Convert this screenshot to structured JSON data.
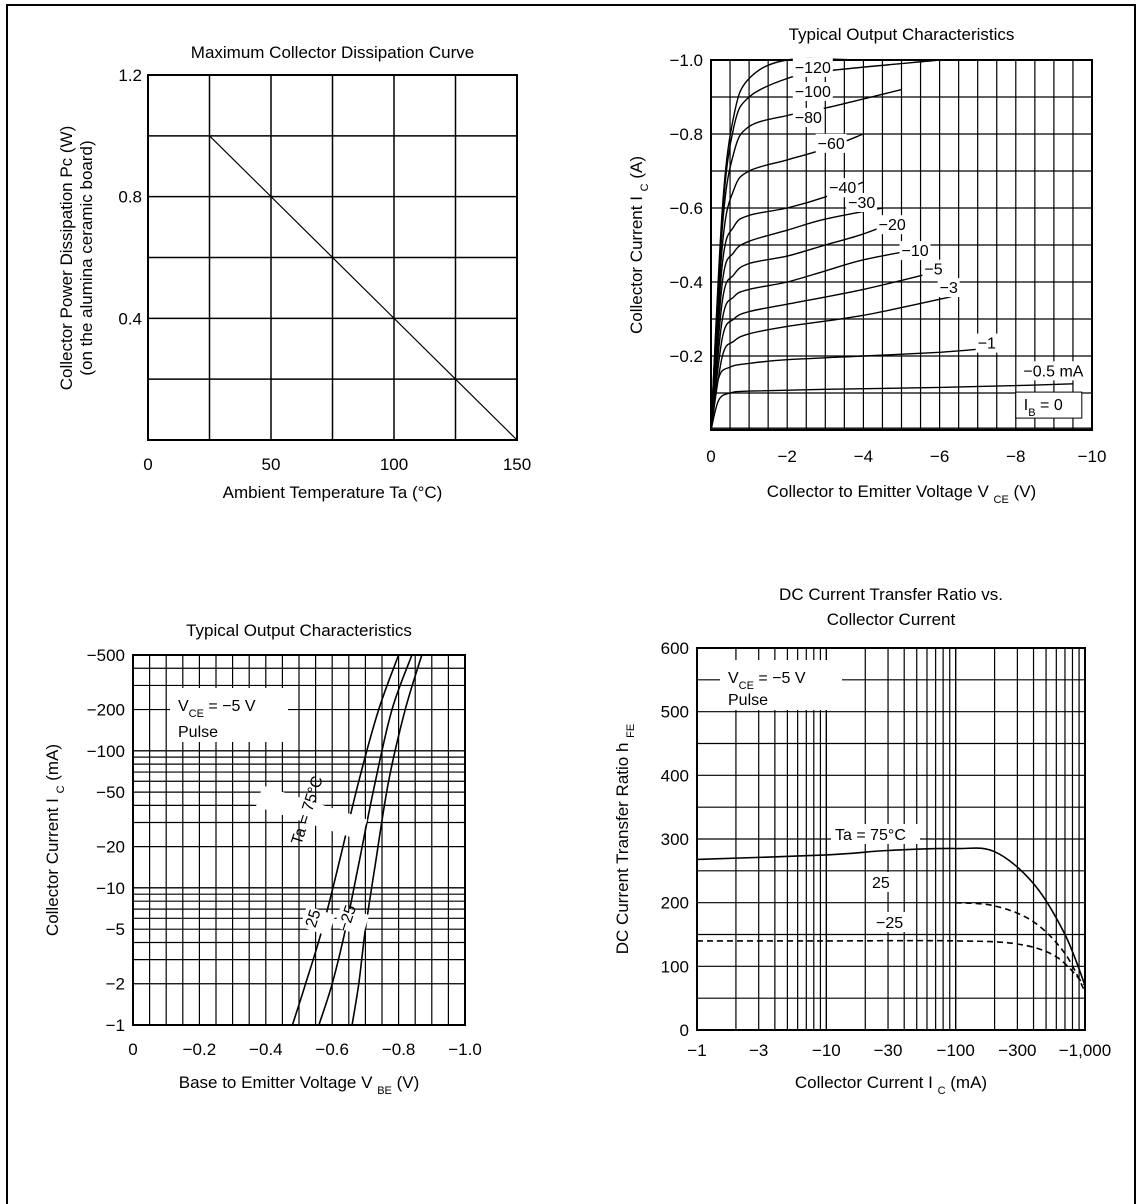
{
  "chart_data": [
    {
      "id": "c1",
      "type": "line",
      "title": "Maximum Collector Dissipation Curve",
      "xlabel": "Ambient Temperature Ta (°C)",
      "ylabel_line1": "Collector Power Dissipation Pc (W)",
      "ylabel_line2": "(on the alumina ceramic board)",
      "xlim": [
        0,
        150
      ],
      "ylim": [
        0,
        1.2
      ],
      "x_ticks": [
        "0",
        "50",
        "100",
        "150"
      ],
      "x_tick_values": [
        0,
        50,
        100,
        150
      ],
      "y_ticks": [
        "1.2",
        "0.8",
        "0.4"
      ],
      "y_tick_values": [
        1.2,
        0.8,
        0.4
      ],
      "grid": true,
      "series": [
        {
          "x": [
            25,
            150
          ],
          "y": [
            1.0,
            0
          ]
        }
      ]
    },
    {
      "id": "c2",
      "type": "line",
      "title": "Typical Output Characteristics",
      "xlabel": "Collector to Emitter Voltage V",
      "xlabel_sub": "CE",
      "xlabel_unit": "(V)",
      "ylabel": "Collector Current I",
      "ylabel_sub": "C",
      "ylabel_unit": "(A)",
      "xlim": [
        0,
        -10
      ],
      "ylim": [
        0,
        -1.0
      ],
      "x_ticks": [
        "0",
        "−2",
        "−4",
        "−6",
        "−8",
        "−10"
      ],
      "x_tick_values": [
        0,
        -2,
        -4,
        -6,
        -8,
        -10
      ],
      "y_ticks": [
        "−1.0",
        "−0.8",
        "−0.6",
        "−0.4",
        "−0.2"
      ],
      "y_tick_values": [
        -1.0,
        -0.8,
        -0.6,
        -0.4,
        -0.2
      ],
      "grid": true,
      "curve_labels": [
        "−120",
        "−100",
        "−80",
        "−60",
        "−40",
        "−30",
        "−20",
        "−10",
        "−5",
        "−3",
        "−1",
        "−0.5 mA"
      ],
      "ib_zero_label": "I",
      "ib_zero_sub": "B",
      "ib_zero_value": "= 0",
      "series": [
        {
          "name": "−120",
          "x": [
            0,
            -0.3,
            -0.6,
            -1,
            -2,
            -4,
            -6
          ],
          "y": [
            0,
            -0.6,
            -0.85,
            -0.95,
            -1.0,
            -1.0,
            -1.0
          ]
        },
        {
          "name": "−100",
          "x": [
            0,
            -0.3,
            -0.6,
            -1,
            -2,
            -3,
            -6
          ],
          "y": [
            0,
            -0.58,
            -0.82,
            -0.9,
            -0.95,
            -0.97,
            -1.0
          ]
        },
        {
          "name": "−80",
          "x": [
            0,
            -0.3,
            -0.6,
            -1,
            -2,
            -3,
            -5
          ],
          "y": [
            0,
            -0.55,
            -0.75,
            -0.82,
            -0.85,
            -0.87,
            -0.92
          ]
        },
        {
          "name": "−60",
          "x": [
            0,
            -0.3,
            -0.6,
            -1,
            -2,
            -3,
            -4
          ],
          "y": [
            0,
            -0.5,
            -0.65,
            -0.7,
            -0.73,
            -0.76,
            -0.8
          ]
        },
        {
          "name": "−40",
          "x": [
            0,
            -0.3,
            -0.6,
            -1,
            -2,
            -3,
            -4
          ],
          "y": [
            0,
            -0.45,
            -0.55,
            -0.58,
            -0.6,
            -0.63,
            -0.67
          ]
        },
        {
          "name": "−30",
          "x": [
            0,
            -0.3,
            -0.6,
            -1,
            -2,
            -3,
            -4.5
          ],
          "y": [
            0,
            -0.4,
            -0.48,
            -0.51,
            -0.54,
            -0.57,
            -0.6
          ]
        },
        {
          "name": "−20",
          "x": [
            0,
            -0.3,
            -0.6,
            -1,
            -2,
            -3,
            -4,
            -5
          ],
          "y": [
            0,
            -0.35,
            -0.42,
            -0.45,
            -0.47,
            -0.5,
            -0.53,
            -0.57
          ]
        },
        {
          "name": "−10",
          "x": [
            0,
            -0.3,
            -0.6,
            -1,
            -2,
            -3,
            -4,
            -5.5
          ],
          "y": [
            0,
            -0.3,
            -0.36,
            -0.38,
            -0.4,
            -0.43,
            -0.46,
            -0.49
          ]
        },
        {
          "name": "−5",
          "x": [
            0,
            -0.3,
            -0.6,
            -1,
            -2,
            -4,
            -6
          ],
          "y": [
            0,
            -0.25,
            -0.3,
            -0.32,
            -0.34,
            -0.38,
            -0.43
          ]
        },
        {
          "name": "−3",
          "x": [
            0,
            -0.3,
            -0.6,
            -1,
            -2,
            -4,
            -6.3
          ],
          "y": [
            0,
            -0.2,
            -0.24,
            -0.26,
            -0.28,
            -0.31,
            -0.36
          ]
        },
        {
          "name": "−1",
          "x": [
            0,
            -0.2,
            -0.5,
            -1,
            -2,
            -4,
            -6,
            -7.2
          ],
          "y": [
            0,
            -0.14,
            -0.17,
            -0.18,
            -0.19,
            -0.2,
            -0.21,
            -0.22
          ]
        },
        {
          "name": "−0.5 mA",
          "x": [
            0,
            -0.2,
            -0.5,
            -1,
            -3,
            -6,
            -8,
            -9.5
          ],
          "y": [
            0,
            -0.08,
            -0.1,
            -0.105,
            -0.11,
            -0.115,
            -0.12,
            -0.125
          ]
        }
      ]
    },
    {
      "id": "c3",
      "type": "line",
      "title": "Typical Output Characteristics",
      "xlabel": "Base to Emitter Voltage V",
      "xlabel_sub": "BE",
      "xlabel_unit": "(V)",
      "ylabel": "Collector Current I",
      "ylabel_sub": "C",
      "ylabel_unit": "(mA)",
      "xlim": [
        0,
        -1.0
      ],
      "ylim": [
        -1,
        -500
      ],
      "y_scale": "log",
      "x_ticks": [
        "0",
        "−0.2",
        "−0.4",
        "−0.6",
        "−0.8",
        "−1.0"
      ],
      "x_tick_values": [
        0,
        -0.2,
        -0.4,
        -0.6,
        -0.8,
        -1.0
      ],
      "y_ticks": [
        "−500",
        "−200",
        "−100",
        "−50",
        "−20",
        "−10",
        "−5",
        "−2",
        "−1"
      ],
      "y_tick_values": [
        -500,
        -200,
        -100,
        -50,
        -20,
        -10,
        -5,
        -2,
        -1
      ],
      "grid": true,
      "legend_line1": "V",
      "legend_sub": "CE",
      "legend_value": "= −5 V",
      "legend_line2": "Pulse",
      "series": [
        {
          "name": "Ta = 75°C",
          "x": [
            -0.48,
            -0.52,
            -0.57,
            -0.62,
            -0.68,
            -0.74,
            -0.8
          ],
          "y": [
            -1,
            -2,
            -5,
            -15,
            -60,
            -200,
            -500
          ]
        },
        {
          "name": "25",
          "x": [
            -0.56,
            -0.6,
            -0.64,
            -0.68,
            -0.73,
            -0.78,
            -0.84
          ],
          "y": [
            -1,
            -2,
            -5,
            -15,
            -60,
            -200,
            -500
          ]
        },
        {
          "name": "−25",
          "x": [
            -0.66,
            -0.68,
            -0.7,
            -0.73,
            -0.77,
            -0.82,
            -0.87
          ],
          "y": [
            -1,
            -2,
            -5,
            -15,
            -60,
            -200,
            -500
          ]
        }
      ],
      "curve_labels": [
        "Ta = 75°C",
        "25",
        "−25"
      ]
    },
    {
      "id": "c4",
      "type": "line",
      "title_line1": "DC Current Transfer Ratio vs.",
      "title_line2": "Collector Current",
      "xlabel": "Collector Current I",
      "xlabel_sub": "C",
      "xlabel_unit": "(mA)",
      "ylabel": "DC Current Transfer Ratio h",
      "ylabel_sub": "FE",
      "xlim": [
        -1,
        -1000
      ],
      "x_scale": "log",
      "ylim": [
        0,
        600
      ],
      "x_ticks": [
        "−1",
        "−3",
        "−10",
        "−30",
        "−100",
        "−300",
        "−1,000"
      ],
      "x_tick_values": [
        -1,
        -3,
        -10,
        -30,
        -100,
        -300,
        -1000
      ],
      "y_ticks": [
        "0",
        "100",
        "200",
        "300",
        "400",
        "500",
        "600"
      ],
      "y_tick_values": [
        0,
        100,
        200,
        300,
        400,
        500,
        600
      ],
      "grid": true,
      "legend_line1": "V",
      "legend_sub": "CE",
      "legend_value": "= −5 V",
      "legend_line2": "Pulse",
      "series": [
        {
          "name": "Ta = 75°C",
          "x": [
            -1,
            -10,
            -30,
            -100,
            -200,
            -400,
            -700,
            -1000
          ],
          "y": [
            268,
            275,
            282,
            285,
            280,
            230,
            150,
            70
          ]
        },
        {
          "name": "25",
          "x": [
            -100,
            -200,
            -400,
            -700,
            -1000
          ],
          "y": [
            200,
            195,
            170,
            120,
            60
          ]
        },
        {
          "name": "−25",
          "x": [
            -1,
            -10,
            -100,
            -300,
            -600,
            -1000
          ],
          "y": [
            140,
            140,
            140,
            135,
            115,
            70
          ]
        }
      ],
      "curve_labels": [
        "Ta = 75°C",
        "25",
        "−25"
      ]
    }
  ]
}
